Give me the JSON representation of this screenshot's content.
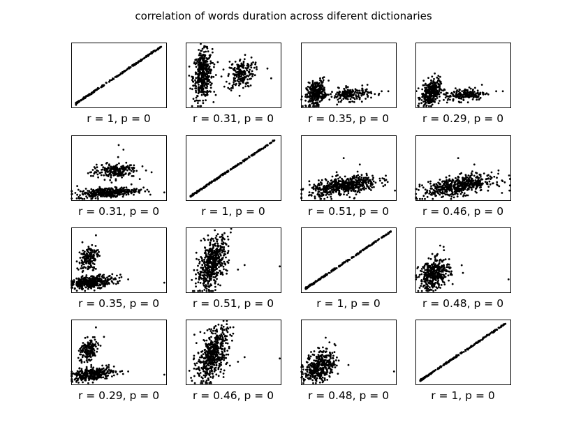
{
  "chart_data": {
    "type": "scatter",
    "title": "correlation of words duration across diferent dictionaries",
    "grid": false,
    "axis_ticks": "hidden",
    "layout": "4x4 matrix",
    "panels": [
      {
        "row": 1,
        "col": 1,
        "label": "r = 1, p = 0",
        "r": 1,
        "p": 0,
        "pattern": "diagonal"
      },
      {
        "row": 1,
        "col": 2,
        "label": "r = 0.31, p = 0",
        "r": 0.31,
        "p": 0,
        "pattern": "two-clusters-vertical"
      },
      {
        "row": 1,
        "col": 3,
        "label": "r = 0.35, p = 0",
        "r": 0.35,
        "p": 0,
        "pattern": "two-clusters-flat"
      },
      {
        "row": 1,
        "col": 4,
        "label": "r = 0.29, p = 0",
        "r": 0.29,
        "p": 0,
        "pattern": "two-clusters-flat"
      },
      {
        "row": 2,
        "col": 1,
        "label": "r = 0.31, p = 0",
        "r": 0.31,
        "p": 0,
        "pattern": "two-bands"
      },
      {
        "row": 2,
        "col": 2,
        "label": "r = 1, p = 0",
        "r": 1,
        "p": 0,
        "pattern": "diagonal"
      },
      {
        "row": 2,
        "col": 3,
        "label": "r = 0.51, p = 0",
        "r": 0.51,
        "p": 0,
        "pattern": "elongated-cloud"
      },
      {
        "row": 2,
        "col": 4,
        "label": "r = 0.46, p = 0",
        "r": 0.46,
        "p": 0,
        "pattern": "elongated-cloud"
      },
      {
        "row": 3,
        "col": 1,
        "label": "r = 0.35, p = 0",
        "r": 0.35,
        "p": 0,
        "pattern": "two-bands-left"
      },
      {
        "row": 3,
        "col": 2,
        "label": "r = 0.51, p = 0",
        "r": 0.51,
        "p": 0,
        "pattern": "vertical-cloud"
      },
      {
        "row": 3,
        "col": 3,
        "label": "r = 1, p = 0",
        "r": 1,
        "p": 0,
        "pattern": "diagonal"
      },
      {
        "row": 3,
        "col": 4,
        "label": "r = 0.48, p = 0",
        "r": 0.48,
        "p": 0,
        "pattern": "blob"
      },
      {
        "row": 4,
        "col": 1,
        "label": "r = 0.29, p = 0",
        "r": 0.29,
        "p": 0,
        "pattern": "two-bands-left"
      },
      {
        "row": 4,
        "col": 2,
        "label": "r = 0.46, p = 0",
        "r": 0.46,
        "p": 0,
        "pattern": "vertical-cloud"
      },
      {
        "row": 4,
        "col": 3,
        "label": "r = 0.48, p = 0",
        "r": 0.48,
        "p": 0,
        "pattern": "blob"
      },
      {
        "row": 4,
        "col": 4,
        "label": "r = 1, p = 0",
        "r": 1,
        "p": 0,
        "pattern": "diagonal"
      }
    ]
  }
}
